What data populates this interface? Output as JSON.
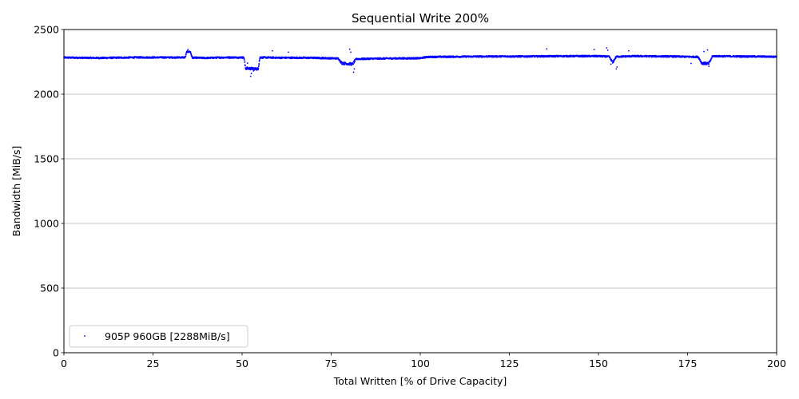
{
  "chart_data": {
    "type": "scatter",
    "title": "Sequential Write 200%",
    "xlabel": "Total Written [% of Drive Capacity]",
    "ylabel": "Bandwidth [MiB/s]",
    "xlim": [
      0,
      200
    ],
    "ylim": [
      0,
      2500
    ],
    "xticks": [
      "0",
      "25",
      "50",
      "75",
      "100",
      "125",
      "150",
      "175",
      "200"
    ],
    "yticks": [
      "0",
      "500",
      "1000",
      "1500",
      "2000",
      "2500"
    ],
    "grid": "y-major",
    "legend_position": "lower-left",
    "series": [
      {
        "name": "905P 960GB [2288MiB/s]",
        "color": "#0000ff",
        "marker": "dot",
        "profile": [
          [
            0,
            2283
          ],
          [
            10,
            2280
          ],
          [
            20,
            2284
          ],
          [
            30,
            2284
          ],
          [
            34,
            2284
          ],
          [
            34.5,
            2328
          ],
          [
            35.5,
            2328
          ],
          [
            36,
            2282
          ],
          [
            40,
            2280
          ],
          [
            45,
            2284
          ],
          [
            50.5,
            2284
          ],
          [
            51,
            2200
          ],
          [
            54.5,
            2195
          ],
          [
            55,
            2284
          ],
          [
            60,
            2282
          ],
          [
            70,
            2281
          ],
          [
            77,
            2276
          ],
          [
            78,
            2240
          ],
          [
            81,
            2232
          ],
          [
            82,
            2272
          ],
          [
            90,
            2276
          ],
          [
            100,
            2278
          ],
          [
            102,
            2288
          ],
          [
            110,
            2290
          ],
          [
            120,
            2292
          ],
          [
            130,
            2292
          ],
          [
            140,
            2294
          ],
          [
            150,
            2294
          ],
          [
            153,
            2290
          ],
          [
            154,
            2245
          ],
          [
            155,
            2290
          ],
          [
            160,
            2294
          ],
          [
            170,
            2292
          ],
          [
            178,
            2288
          ],
          [
            179,
            2240
          ],
          [
            181,
            2236
          ],
          [
            182,
            2294
          ],
          [
            190,
            2292
          ],
          [
            200,
            2290
          ]
        ],
        "outliers": [
          [
            34.8,
            2345
          ],
          [
            51.5,
            2240
          ],
          [
            52.4,
            2138
          ],
          [
            52.6,
            2160
          ],
          [
            53.2,
            2180
          ],
          [
            58.5,
            2335
          ],
          [
            63,
            2325
          ],
          [
            80.2,
            2348
          ],
          [
            80.5,
            2325
          ],
          [
            81.3,
            2170
          ],
          [
            81.5,
            2195
          ],
          [
            135.5,
            2350
          ],
          [
            148.8,
            2345
          ],
          [
            152.3,
            2358
          ],
          [
            152.6,
            2340
          ],
          [
            153.5,
            2232
          ],
          [
            155,
            2195
          ],
          [
            155.2,
            2210
          ],
          [
            158.5,
            2335
          ],
          [
            176,
            2238
          ],
          [
            179.6,
            2330
          ],
          [
            180.6,
            2342
          ],
          [
            181,
            2215
          ]
        ]
      }
    ]
  }
}
